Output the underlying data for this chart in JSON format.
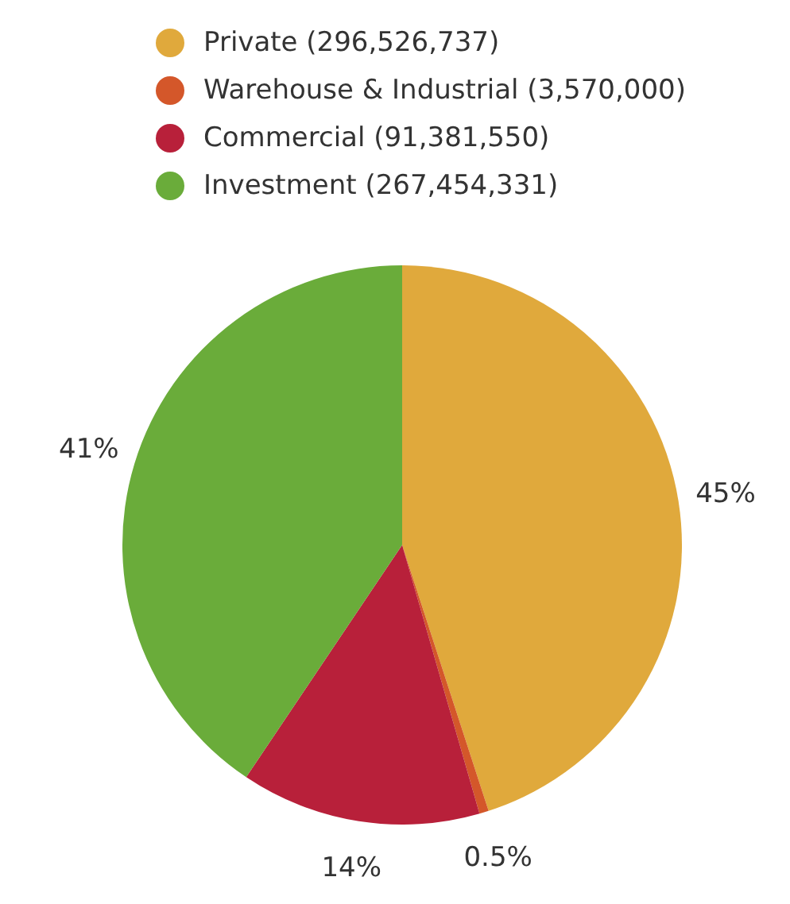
{
  "chart_data": {
    "type": "pie",
    "categories": [
      "Private (296,526,737)",
      "Warehouse & Industrial (3,570,000)",
      "Commercial (91,381,550)",
      "Investment (267,454,331)"
    ],
    "values": [
      45.0,
      0.54,
      13.87,
      40.59
    ],
    "colors": [
      "#e0a93c",
      "#d4572a",
      "#b8203a",
      "#6aac3a"
    ],
    "value_labels": [
      "45%",
      "0.5%",
      "14%",
      "41%"
    ],
    "legend": "top"
  }
}
